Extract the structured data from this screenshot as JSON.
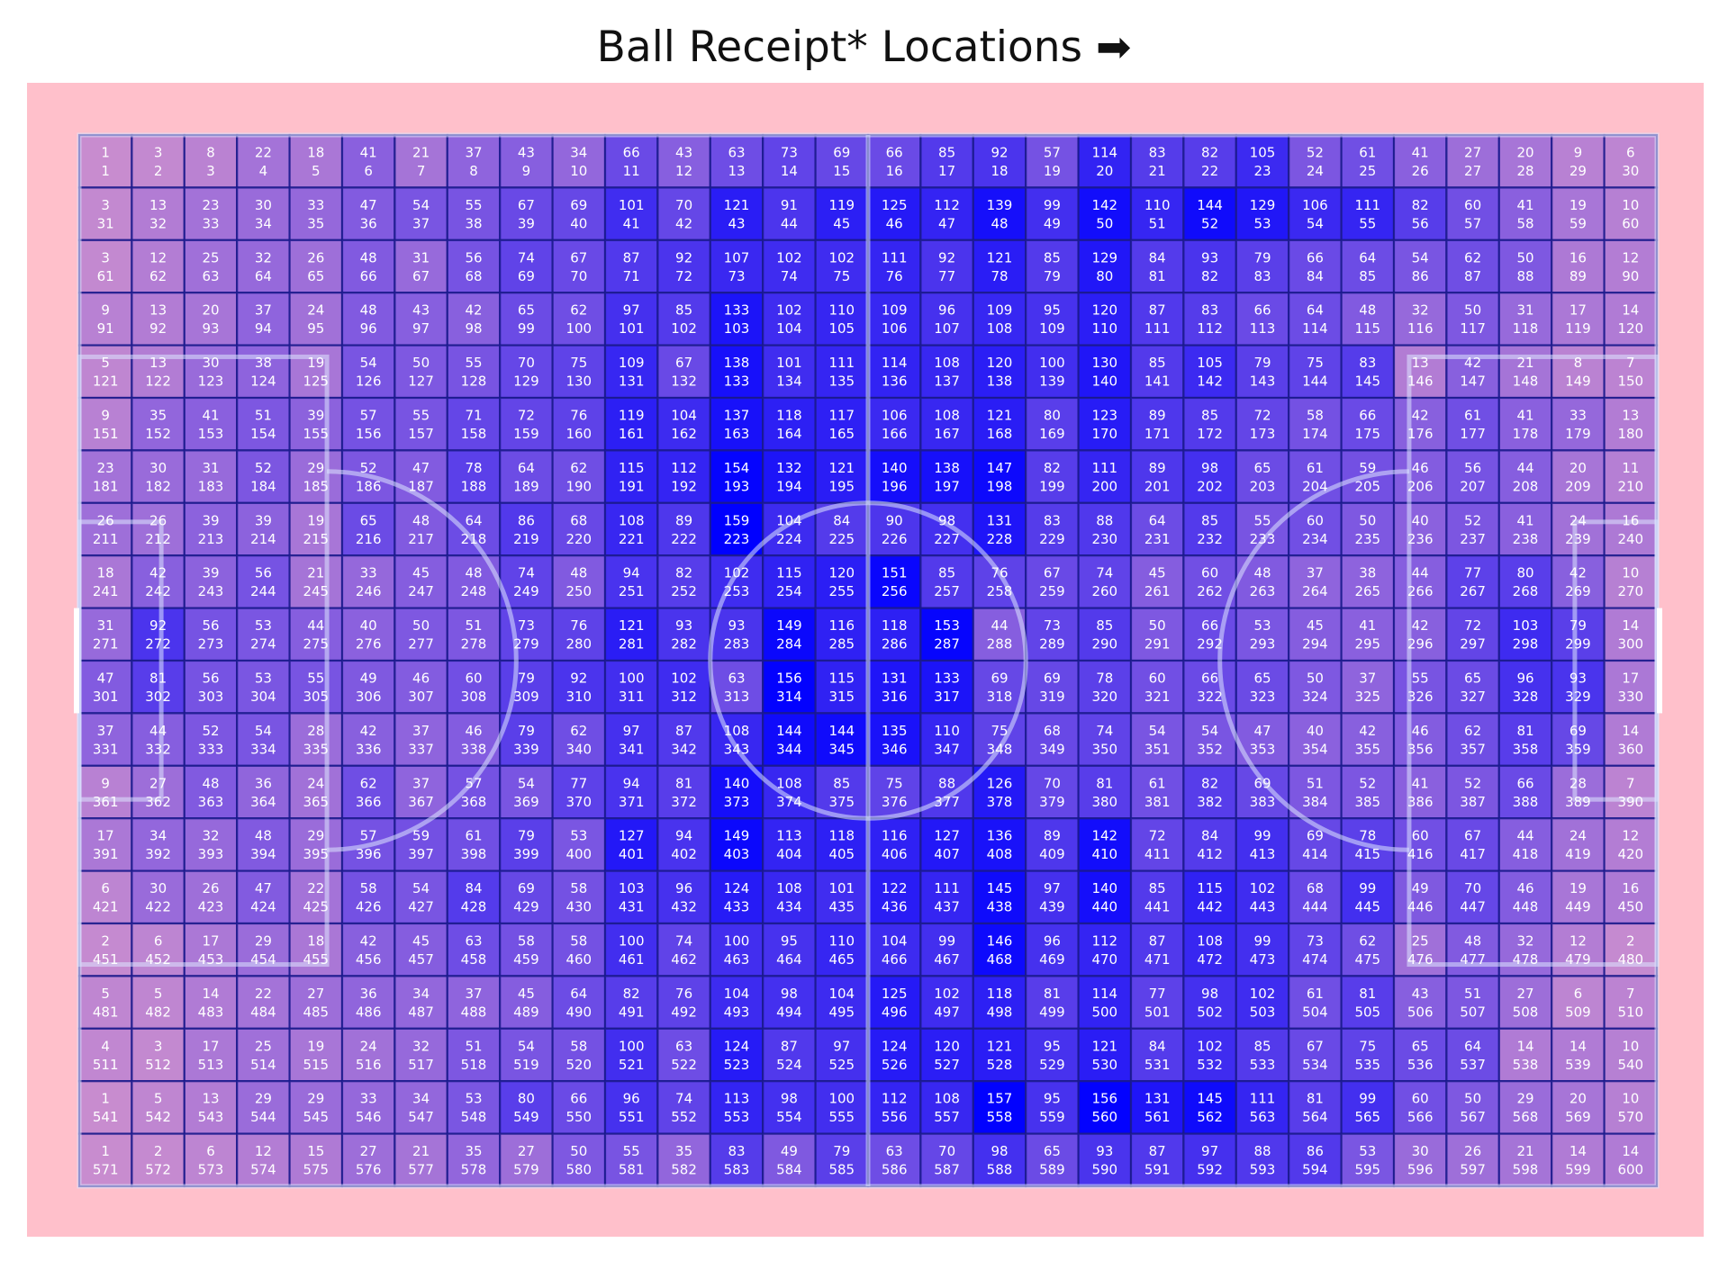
{
  "chart_data": {
    "type": "heatmap",
    "title": "Ball Receipt* Locations ➡",
    "rows": 20,
    "cols": 30,
    "colors": {
      "background": "#ffc0cb",
      "low": "#c88ccf",
      "high": "#0000ff",
      "grid": "#1a1a8c",
      "pitch_line": "#dde6ff"
    },
    "value_range": [
      1,
      159
    ],
    "values": [
      [
        1,
        3,
        8,
        22,
        18,
        41,
        21,
        37,
        43,
        34,
        66,
        43,
        63,
        73,
        69,
        66,
        85,
        92,
        57,
        114,
        83,
        82,
        105,
        52,
        61,
        41,
        27,
        20,
        9,
        6
      ],
      [
        3,
        13,
        23,
        30,
        33,
        47,
        54,
        55,
        67,
        69,
        101,
        70,
        121,
        91,
        119,
        125,
        112,
        139,
        99,
        142,
        110,
        144,
        129,
        106,
        111,
        82,
        60,
        41,
        19,
        10
      ],
      [
        3,
        12,
        25,
        32,
        26,
        48,
        31,
        56,
        74,
        67,
        87,
        92,
        107,
        102,
        102,
        111,
        92,
        121,
        85,
        129,
        84,
        93,
        79,
        66,
        64,
        54,
        62,
        50,
        16,
        12
      ],
      [
        9,
        13,
        20,
        37,
        24,
        48,
        43,
        42,
        65,
        62,
        97,
        85,
        133,
        102,
        110,
        109,
        96,
        109,
        95,
        120,
        87,
        83,
        66,
        64,
        48,
        32,
        50,
        31,
        17,
        14
      ],
      [
        5,
        13,
        30,
        38,
        19,
        54,
        50,
        55,
        70,
        75,
        109,
        67,
        138,
        101,
        111,
        114,
        108,
        120,
        100,
        130,
        85,
        105,
        79,
        75,
        83,
        13,
        42,
        21,
        8,
        7
      ],
      [
        9,
        35,
        41,
        51,
        39,
        57,
        55,
        71,
        72,
        76,
        119,
        104,
        137,
        118,
        117,
        106,
        108,
        121,
        80,
        123,
        89,
        85,
        72,
        58,
        66,
        42,
        61,
        41,
        33,
        13
      ],
      [
        23,
        30,
        31,
        52,
        29,
        52,
        47,
        78,
        64,
        62,
        115,
        112,
        154,
        132,
        121,
        140,
        138,
        147,
        82,
        111,
        89,
        98,
        65,
        61,
        59,
        46,
        56,
        44,
        20,
        11
      ],
      [
        26,
        26,
        39,
        39,
        19,
        65,
        48,
        64,
        86,
        68,
        108,
        89,
        159,
        104,
        84,
        90,
        98,
        131,
        83,
        88,
        64,
        85,
        55,
        60,
        50,
        40,
        52,
        41,
        24,
        16
      ],
      [
        18,
        42,
        39,
        56,
        21,
        33,
        45,
        48,
        74,
        48,
        94,
        82,
        102,
        115,
        120,
        151,
        85,
        76,
        67,
        74,
        45,
        60,
        48,
        37,
        38,
        44,
        77,
        80,
        42,
        10
      ],
      [
        31,
        92,
        56,
        53,
        44,
        40,
        50,
        51,
        73,
        76,
        121,
        93,
        93,
        149,
        116,
        118,
        153,
        44,
        73,
        85,
        50,
        66,
        53,
        45,
        41,
        42,
        72,
        103,
        79,
        14
      ],
      [
        47,
        81,
        56,
        53,
        55,
        49,
        46,
        60,
        79,
        92,
        100,
        102,
        63,
        156,
        115,
        131,
        133,
        69,
        69,
        78,
        60,
        66,
        65,
        50,
        37,
        55,
        65,
        96,
        93,
        17
      ],
      [
        37,
        44,
        52,
        54,
        28,
        42,
        37,
        46,
        79,
        62,
        97,
        87,
        108,
        144,
        144,
        135,
        110,
        75,
        68,
        74,
        54,
        54,
        47,
        40,
        42,
        46,
        62,
        81,
        69,
        14
      ],
      [
        9,
        27,
        48,
        36,
        24,
        62,
        37,
        57,
        54,
        77,
        94,
        81,
        140,
        108,
        85,
        75,
        88,
        126,
        70,
        81,
        61,
        82,
        69,
        51,
        52,
        41,
        52,
        66,
        28,
        7
      ],
      [
        17,
        34,
        32,
        48,
        29,
        57,
        59,
        61,
        79,
        53,
        127,
        94,
        149,
        113,
        118,
        116,
        127,
        136,
        89,
        142,
        72,
        84,
        99,
        69,
        78,
        60,
        67,
        44,
        24,
        12
      ],
      [
        6,
        30,
        26,
        47,
        22,
        58,
        54,
        84,
        69,
        58,
        103,
        96,
        124,
        108,
        101,
        122,
        111,
        145,
        97,
        140,
        85,
        115,
        102,
        68,
        99,
        49,
        70,
        46,
        19,
        16
      ],
      [
        2,
        6,
        17,
        29,
        18,
        42,
        45,
        63,
        58,
        58,
        100,
        74,
        100,
        95,
        110,
        104,
        99,
        146,
        96,
        112,
        87,
        108,
        99,
        73,
        62,
        25,
        48,
        32,
        12,
        2
      ],
      [
        5,
        5,
        14,
        22,
        27,
        36,
        34,
        37,
        45,
        64,
        82,
        76,
        104,
        98,
        104,
        125,
        102,
        118,
        81,
        114,
        77,
        98,
        102,
        61,
        81,
        43,
        51,
        27,
        6,
        7
      ],
      [
        4,
        3,
        17,
        25,
        19,
        24,
        32,
        51,
        54,
        58,
        100,
        63,
        124,
        87,
        97,
        124,
        120,
        121,
        95,
        121,
        84,
        102,
        85,
        67,
        75,
        65,
        64,
        14,
        14,
        10
      ],
      [
        1,
        5,
        13,
        29,
        29,
        33,
        34,
        53,
        80,
        66,
        96,
        74,
        113,
        98,
        100,
        112,
        108,
        157,
        95,
        156,
        131,
        145,
        111,
        81,
        99,
        60,
        50,
        29,
        20,
        10
      ],
      [
        1,
        2,
        6,
        12,
        15,
        27,
        21,
        35,
        27,
        50,
        55,
        35,
        83,
        49,
        79,
        63,
        70,
        98,
        65,
        93,
        87,
        97,
        88,
        86,
        53,
        30,
        26,
        21,
        14,
        14
      ]
    ]
  }
}
